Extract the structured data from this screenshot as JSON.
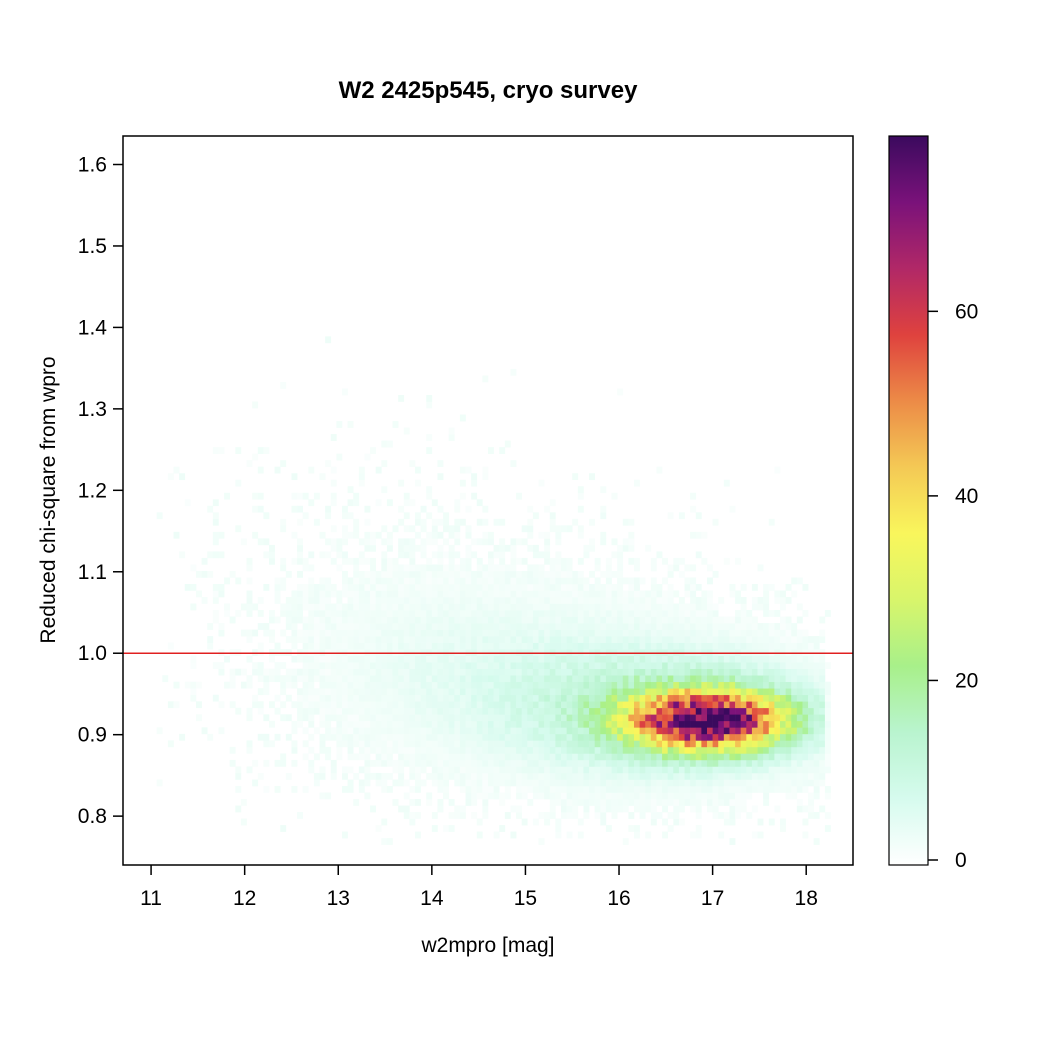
{
  "chart_data": {
    "type": "heatmap",
    "title": "W2 2425p545, cryo survey",
    "xlabel": "w2mpro [mag]",
    "ylabel": "Reduced chi-square from wpro",
    "xlim": [
      10.7,
      18.5
    ],
    "ylim": [
      0.74,
      1.635
    ],
    "x_ticks": [
      11,
      12,
      13,
      14,
      15,
      16,
      17,
      18
    ],
    "x_tick_labels": [
      "11",
      "12",
      "13",
      "14",
      "15",
      "16",
      "17",
      "18"
    ],
    "y_ticks": [
      0.8,
      0.9,
      1.0,
      1.1,
      1.2,
      1.3,
      1.4,
      1.5,
      1.6
    ],
    "y_tick_labels": [
      "0.8",
      "0.9",
      "1.0",
      "1.1",
      "1.2",
      "1.3",
      "1.4",
      "1.5",
      "1.6"
    ],
    "reference_line": {
      "y": 1.0,
      "color": "#e02020"
    },
    "colorbar": {
      "range": [
        0,
        79
      ],
      "ticks": [
        0,
        20,
        40,
        60
      ],
      "tick_labels": [
        "0",
        "20",
        "40",
        "60"
      ],
      "colors": [
        "#ffffff",
        "#d6fbee",
        "#b9f4cf",
        "#a8f08a",
        "#d8f56b",
        "#f9f65c",
        "#f4c955",
        "#ec8b47",
        "#df423e",
        "#b12867",
        "#7a127a",
        "#3b0a5e"
      ]
    },
    "density_components": [
      {
        "center": [
          16.95,
          0.918
        ],
        "sigma": [
          0.55,
          0.024
        ],
        "peak": 72
      },
      {
        "center": [
          16.6,
          0.925
        ],
        "sigma": [
          1.05,
          0.05
        ],
        "peak": 14
      },
      {
        "center": [
          15.1,
          0.97
        ],
        "sigma": [
          1.35,
          0.075
        ],
        "peak": 4.5
      },
      {
        "center": [
          13.6,
          1.04
        ],
        "sigma": [
          1.1,
          0.1
        ],
        "peak": 1.1
      }
    ],
    "bin_size": [
      0.06,
      0.008
    ],
    "x_extent_of_data": [
      11.0,
      18.2
    ],
    "y_extent_of_data": [
      0.765,
      1.6
    ]
  }
}
